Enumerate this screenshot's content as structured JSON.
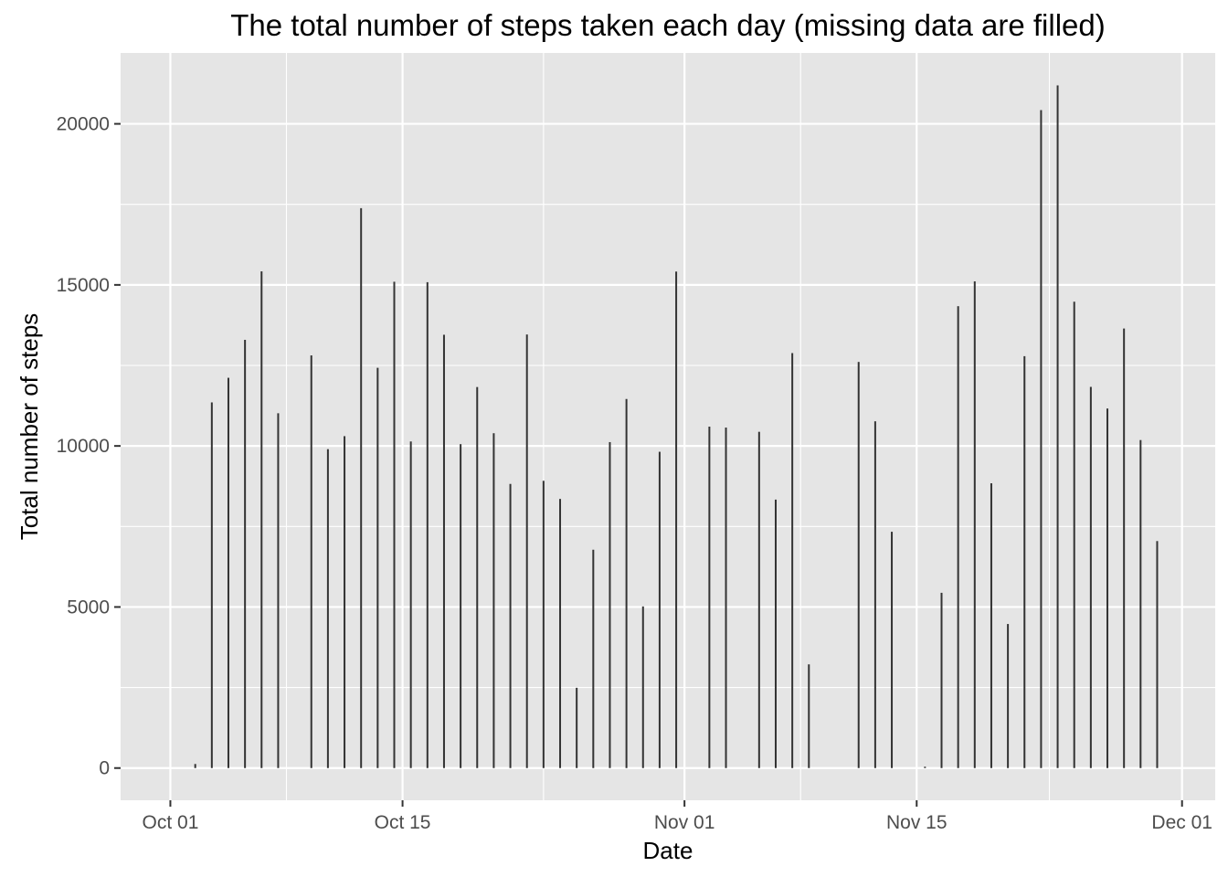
{
  "chart_data": {
    "type": "bar",
    "title": "The total number of steps taken each day (missing data are filled)",
    "xlabel": "Date",
    "ylabel": "Total number of steps",
    "x_ticks": [
      "Oct 01",
      "Oct 15",
      "Nov 01",
      "Nov 15",
      "Dec 01"
    ],
    "x_tick_dates": [
      "2012-10-01",
      "2012-10-15",
      "2012-11-01",
      "2012-11-15",
      "2012-12-01"
    ],
    "y_ticks": [
      0,
      5000,
      10000,
      15000,
      20000
    ],
    "ylim": [
      -1000,
      22200
    ],
    "xlim": [
      "2012-09-28",
      "2012-12-03"
    ],
    "grid": true,
    "background": "#e5e5e5",
    "bar_color": "#333333",
    "x": [
      "2012-10-01",
      "2012-10-02",
      "2012-10-03",
      "2012-10-04",
      "2012-10-05",
      "2012-10-06",
      "2012-10-07",
      "2012-10-08",
      "2012-10-09",
      "2012-10-10",
      "2012-10-11",
      "2012-10-12",
      "2012-10-13",
      "2012-10-14",
      "2012-10-15",
      "2012-10-16",
      "2012-10-17",
      "2012-10-18",
      "2012-10-19",
      "2012-10-20",
      "2012-10-21",
      "2012-10-22",
      "2012-10-23",
      "2012-10-24",
      "2012-10-25",
      "2012-10-26",
      "2012-10-27",
      "2012-10-28",
      "2012-10-29",
      "2012-10-30",
      "2012-10-31",
      "2012-11-01",
      "2012-11-02",
      "2012-11-03",
      "2012-11-04",
      "2012-11-05",
      "2012-11-06",
      "2012-11-07",
      "2012-11-08",
      "2012-11-09",
      "2012-11-10",
      "2012-11-11",
      "2012-11-12",
      "2012-11-13",
      "2012-11-14",
      "2012-11-15",
      "2012-11-16",
      "2012-11-17",
      "2012-11-18",
      "2012-11-19",
      "2012-11-20",
      "2012-11-21",
      "2012-11-22",
      "2012-11-23",
      "2012-11-24",
      "2012-11-25",
      "2012-11-26",
      "2012-11-27",
      "2012-11-28",
      "2012-11-29",
      "2012-11-30"
    ],
    "values": [
      0,
      126,
      11352,
      12116,
      13294,
      15420,
      11015,
      0,
      12811,
      9900,
      10304,
      17382,
      12426,
      15098,
      10139,
      15084,
      13452,
      10056,
      11829,
      10395,
      8821,
      13460,
      8918,
      8355,
      2492,
      6778,
      10119,
      11458,
      5018,
      9819,
      15414,
      0,
      10600,
      10571,
      0,
      10439,
      8334,
      12883,
      3219,
      0,
      0,
      12608,
      10765,
      7336,
      0,
      41,
      5441,
      14339,
      15110,
      8841,
      4472,
      12787,
      20427,
      21194,
      14478,
      11834,
      11162,
      13646,
      10183,
      7047,
      0
    ]
  }
}
